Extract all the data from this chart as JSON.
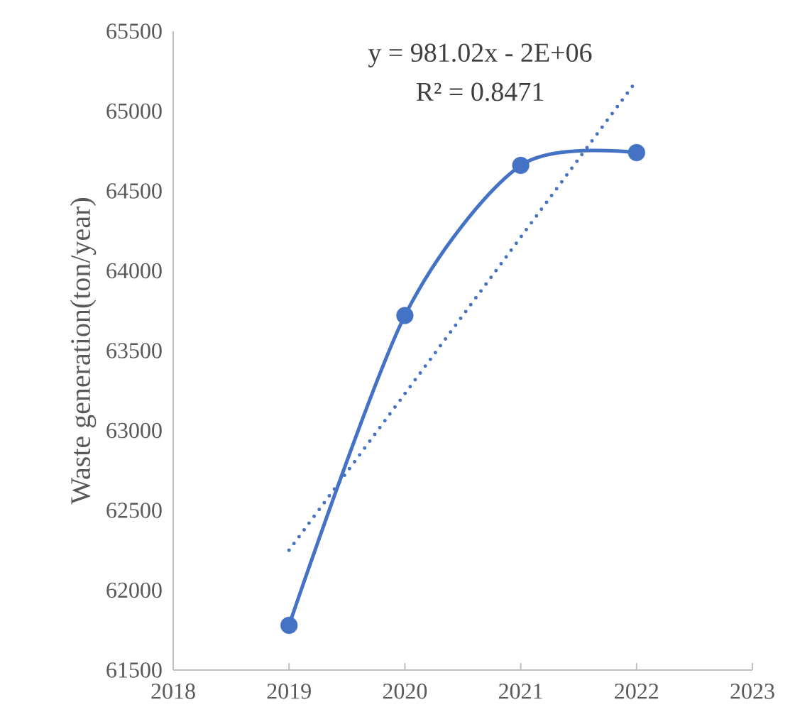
{
  "chart_data": {
    "type": "line",
    "ylabel": "Waste generation(ton/year)",
    "annotations": [
      "y = 981.02x - 2E+06",
      "R² = 0.8471"
    ],
    "series": [
      {
        "color": "#4472c4",
        "x": [
          2019,
          2020,
          2021,
          2022
        ],
        "values": [
          61780,
          63720,
          64660,
          64740
        ],
        "marker": "circle",
        "line_style": "solid"
      },
      {
        "type": "line",
        "color": "#4472c4",
        "x": [
          2019,
          2022
        ],
        "values": [
          62250,
          65190
        ],
        "marker": "none",
        "line_style": "dotted"
      }
    ],
    "xlim": [
      2018,
      2023
    ],
    "xticks": [
      2018,
      2019,
      2020,
      2021,
      2022,
      2023
    ],
    "ylim": [
      61500,
      65500
    ],
    "yticks": [
      61500,
      62000,
      62500,
      63000,
      63500,
      64000,
      64500,
      65000,
      65500
    ],
    "grid": false
  }
}
